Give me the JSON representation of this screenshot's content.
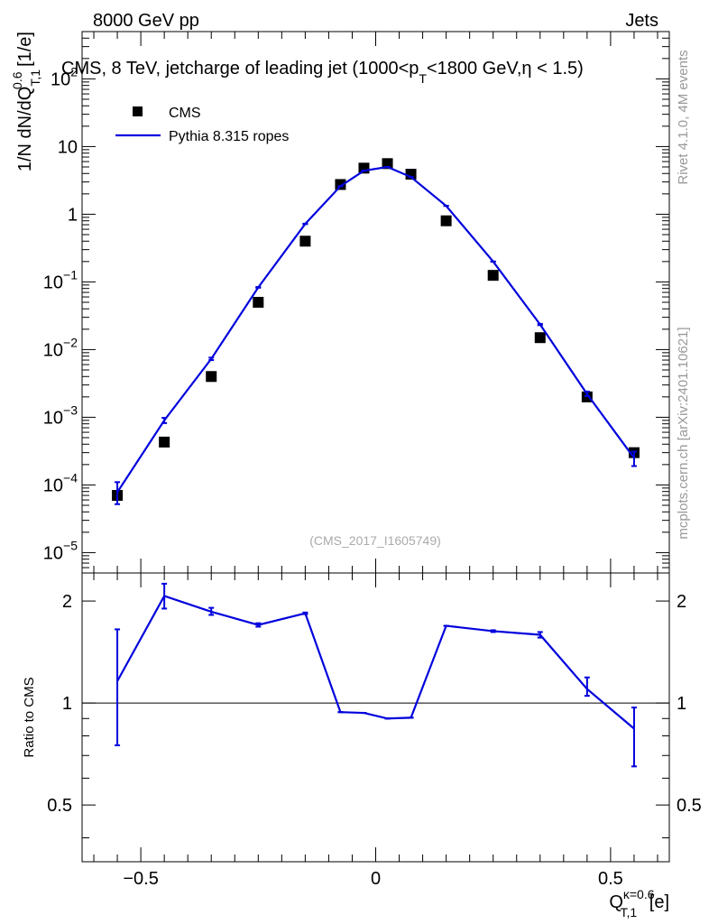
{
  "header": {
    "left": "8000 GeV pp",
    "right": "Jets"
  },
  "side_labels": {
    "rivet": "Rivet 4.1.0,  4M events",
    "mcplots": "mcplots.cern.ch [arXiv:2401.10621]"
  },
  "chart_data": {
    "type": "scatter",
    "title": {
      "main": "CMS, 8 TeV, jetcharge of leading jet (1000<p",
      "sub": "T",
      "rest": "<1800 GeV,η < 1.5)"
    },
    "watermark": "(CMS_2017_I1605749)",
    "xlabel": {
      "base": "Q",
      "sup": "κ=0.6",
      "sub": "T,1",
      "unit": " [e]"
    },
    "ylabel": {
      "base": "1/N dN/dQ",
      "sup": "0.6",
      "sub": "T,1",
      "unit": " [1/e]"
    },
    "ratio_ylabel": "Ratio to CMS",
    "xlim": [
      -0.625,
      0.625
    ],
    "ylim": [
      5e-06,
      500
    ],
    "ratio_ylim": [
      0.34,
      2.42
    ],
    "x_ticks": [
      {
        "value": -0.5,
        "label": "−0.5"
      },
      {
        "value": 0,
        "label": "0"
      },
      {
        "value": 0.5,
        "label": "0.5"
      }
    ],
    "y_ticks": [
      {
        "value": 1e-05,
        "base": "10",
        "exp": "−5"
      },
      {
        "value": 0.0001,
        "base": "10",
        "exp": "−4"
      },
      {
        "value": 0.001,
        "base": "10",
        "exp": "−3"
      },
      {
        "value": 0.01,
        "base": "10",
        "exp": "−2"
      },
      {
        "value": 0.1,
        "base": "10",
        "exp": "−1"
      },
      {
        "value": 1,
        "base": "1",
        "exp": ""
      },
      {
        "value": 10,
        "base": "10",
        "exp": ""
      },
      {
        "value": 100,
        "base": "10",
        "exp": "2"
      }
    ],
    "ratio_ticks": [
      {
        "value": 0.5,
        "label": "0.5"
      },
      {
        "value": 1,
        "label": "1"
      },
      {
        "value": 2,
        "label": "2"
      }
    ],
    "legend": [
      {
        "label": "CMS",
        "marker": "square",
        "color": "#000000"
      },
      {
        "label": "Pythia 8.315 ropes",
        "marker": "line",
        "color": "#0000dd"
      }
    ],
    "series": [
      {
        "name": "CMS",
        "color": "#000000",
        "x": [
          -0.55,
          -0.45,
          -0.35,
          -0.25,
          -0.15,
          -0.075,
          -0.025,
          0.025,
          0.075,
          0.15,
          0.25,
          0.35,
          0.45,
          0.55
        ],
        "values": [
          7e-05,
          0.00043,
          0.004,
          0.05,
          0.4,
          2.75,
          4.8,
          5.6,
          3.9,
          0.8,
          0.125,
          0.015,
          0.002,
          0.0003
        ]
      },
      {
        "name": "Pythia 8.315 ropes",
        "color": "#0000dd",
        "x": [
          -0.55,
          -0.45,
          -0.35,
          -0.25,
          -0.15,
          -0.075,
          -0.025,
          0.025,
          0.075,
          0.15,
          0.25,
          0.35,
          0.45,
          0.55
        ],
        "values": [
          7.8e-05,
          0.0009,
          0.0073,
          0.083,
          0.72,
          2.6,
          4.4,
          5.0,
          3.55,
          1.33,
          0.2,
          0.0235,
          0.0022,
          0.00025
        ],
        "err_lo": [
          5.2e-05,
          0.00082,
          0.007,
          0.082,
          0.715,
          2.6,
          4.4,
          5.0,
          3.55,
          1.33,
          0.2,
          0.023,
          0.00205,
          0.00019
        ],
        "err_hi": [
          0.00011,
          0.00098,
          0.0076,
          0.084,
          0.725,
          2.6,
          4.4,
          5.0,
          3.55,
          1.33,
          0.2,
          0.024,
          0.0024,
          0.00031
        ],
        "ratio": [
          1.16,
          2.07,
          1.86,
          1.7,
          1.84,
          0.94,
          0.935,
          0.9,
          0.905,
          1.69,
          1.63,
          1.59,
          1.1,
          0.84
        ],
        "ratio_lo": [
          0.75,
          1.9,
          1.82,
          1.68,
          1.83,
          0.94,
          0.935,
          0.9,
          0.905,
          1.69,
          1.62,
          1.56,
          1.05,
          0.65
        ],
        "ratio_hi": [
          1.65,
          2.25,
          1.91,
          1.72,
          1.85,
          0.94,
          0.935,
          0.9,
          0.905,
          1.69,
          1.64,
          1.62,
          1.19,
          0.97
        ]
      }
    ]
  }
}
